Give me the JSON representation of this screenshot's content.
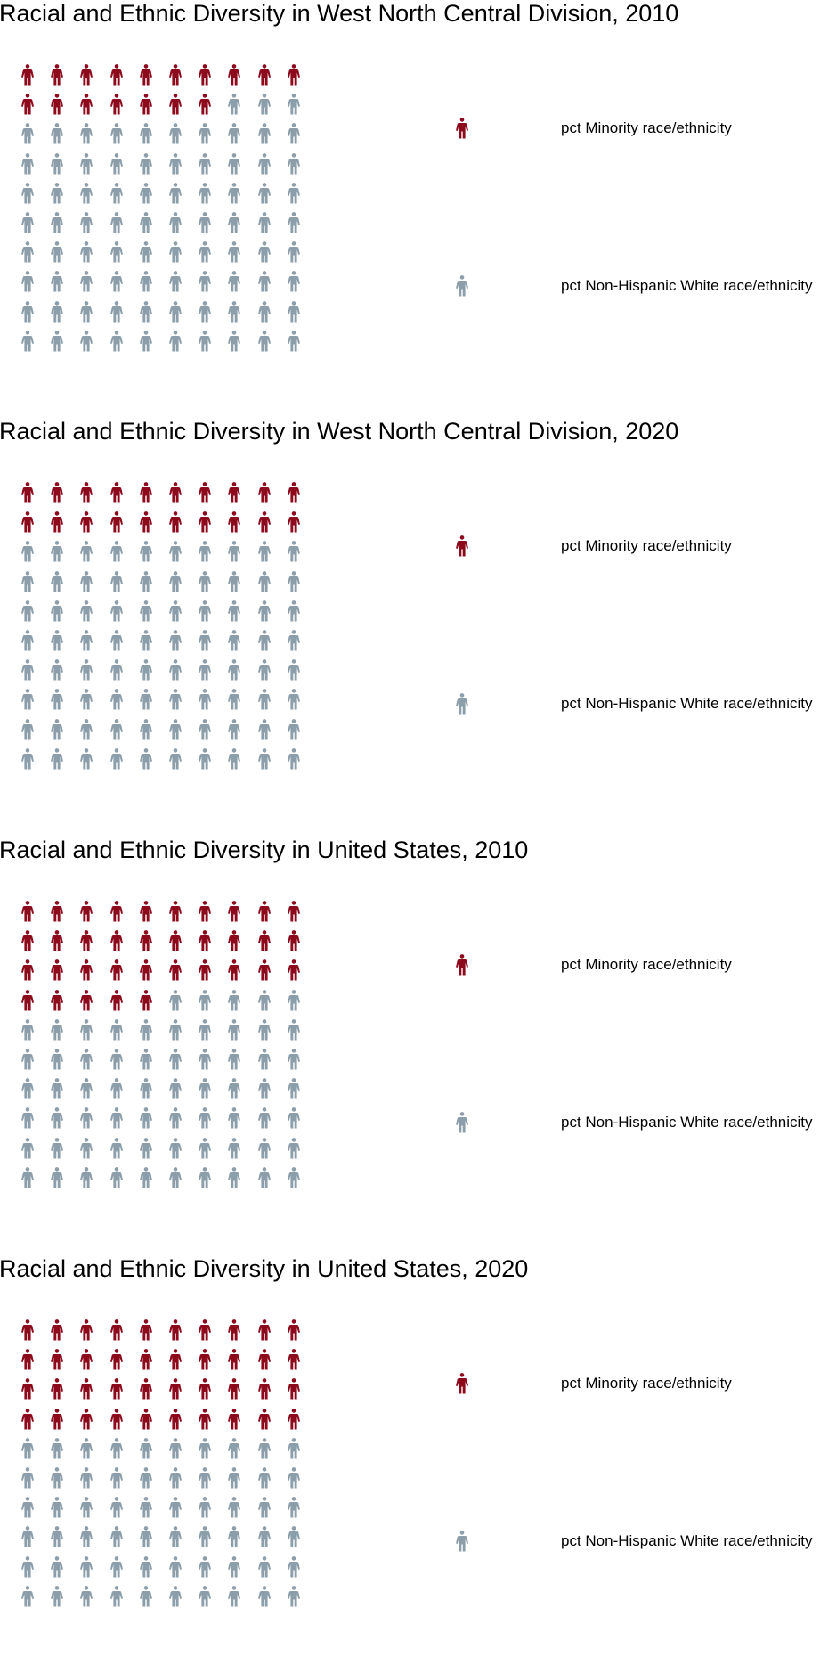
{
  "colors": {
    "minority": "#8c0a1c",
    "white": "#8d9eab"
  },
  "icon": "person-icon",
  "chart_data": [
    {
      "type": "pictogram",
      "title": "Racial and Ethnic Diversity in West North Central Division, 2010",
      "total": 100,
      "rows": 10,
      "columns": 10,
      "series": [
        {
          "name": "pct Minority race/ethnicity",
          "value": 17,
          "color": "#8c0a1c"
        },
        {
          "name": "pct Non-Hispanic White race/ethnicity",
          "value": 83,
          "color": "#8d9eab"
        }
      ]
    },
    {
      "type": "pictogram",
      "title": "Racial and Ethnic Diversity in West North Central Division, 2020",
      "total": 100,
      "rows": 10,
      "columns": 10,
      "series": [
        {
          "name": "pct Minority race/ethnicity",
          "value": 20,
          "color": "#8c0a1c"
        },
        {
          "name": "pct Non-Hispanic White race/ethnicity",
          "value": 80,
          "color": "#8d9eab"
        }
      ]
    },
    {
      "type": "pictogram",
      "title": "Racial and Ethnic Diversity in United States, 2010",
      "total": 100,
      "rows": 10,
      "columns": 10,
      "series": [
        {
          "name": "pct Minority race/ethnicity",
          "value": 35,
          "color": "#8c0a1c"
        },
        {
          "name": "pct Non-Hispanic White race/ethnicity",
          "value": 65,
          "color": "#8d9eab"
        }
      ]
    },
    {
      "type": "pictogram",
      "title": "Racial and Ethnic Diversity in United States, 2020",
      "total": 100,
      "rows": 10,
      "columns": 10,
      "series": [
        {
          "name": "pct Minority race/ethnicity",
          "value": 40,
          "color": "#8c0a1c"
        },
        {
          "name": "pct Non-Hispanic White race/ethnicity",
          "value": 60,
          "color": "#8d9eab"
        }
      ]
    }
  ]
}
